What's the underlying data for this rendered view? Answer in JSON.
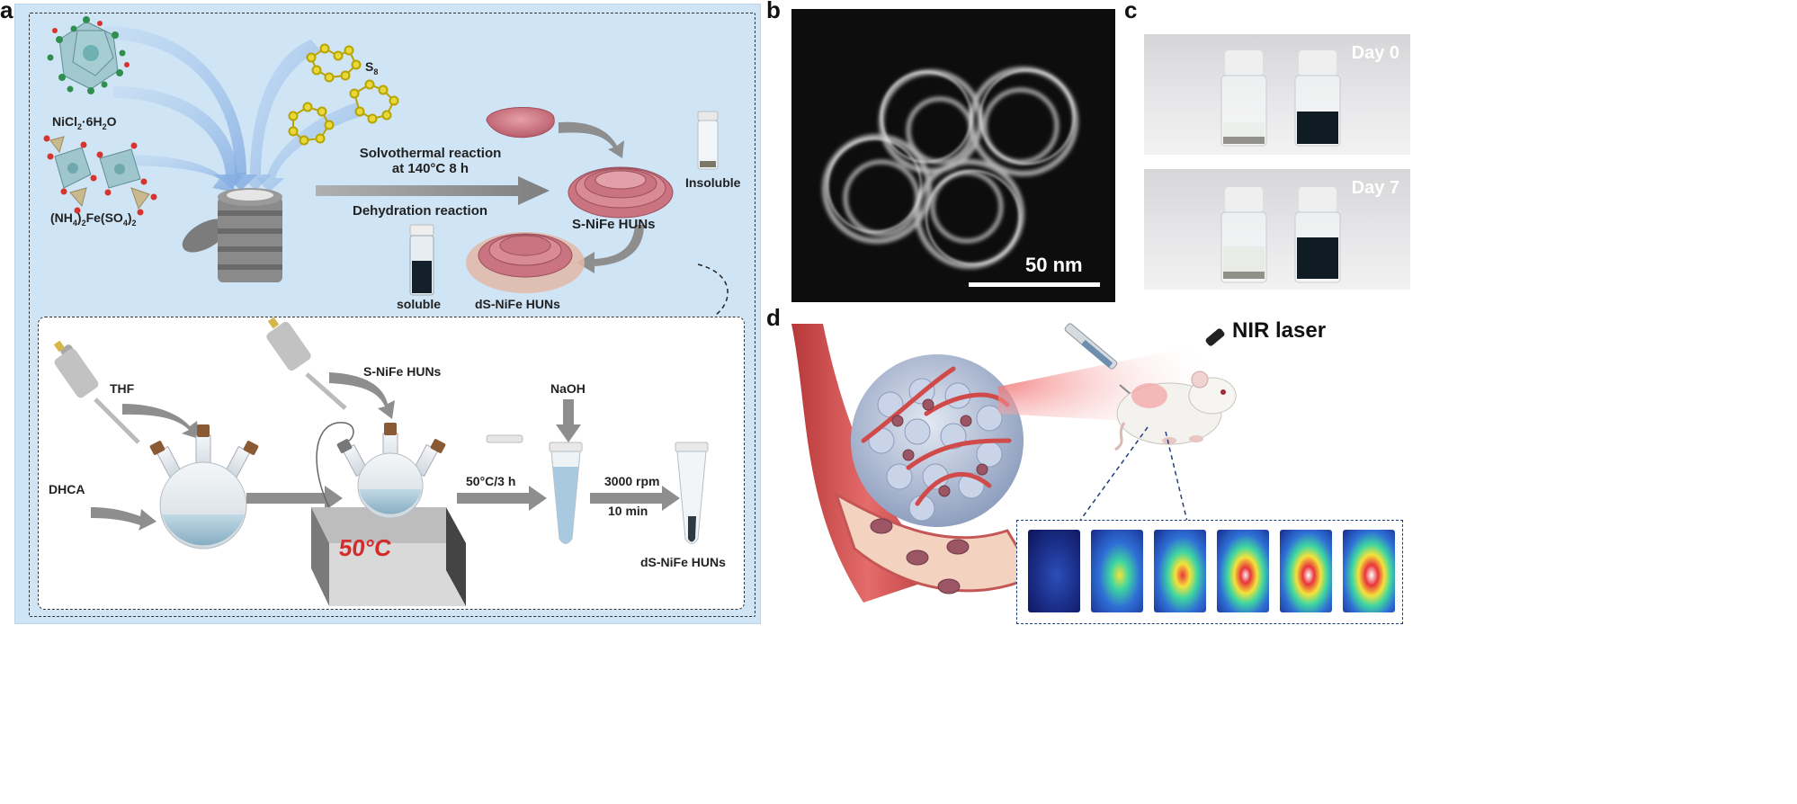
{
  "panels": {
    "a": "a",
    "b": "b",
    "c": "c",
    "d": "d"
  },
  "panel_a": {
    "precursor_ni": "NiCl",
    "precursor_ni_sub": "2",
    "precursor_ni_tail": "·6H",
    "precursor_ni_sub2": "2",
    "precursor_ni_end": "O",
    "precursor_fe_open": "(NH",
    "precursor_fe_sub1": "4",
    "precursor_fe_mid": ")",
    "precursor_fe_sub2": "2",
    "precursor_fe_body": "Fe(SO",
    "precursor_fe_sub3": "4",
    "precursor_fe_close": ")",
    "precursor_fe_sub4": "2",
    "sulfur": "S",
    "sulfur_sub": "8",
    "solvothermal_line1": "Solvothermal reaction",
    "solvothermal_line2": "at 140°C 8 h",
    "dehydration": "Dehydration reaction",
    "s_nife": "S-NiFe HUNs",
    "insoluble": "Insoluble",
    "soluble": "soluble",
    "ds_nife": "dS-NiFe HUNs",
    "thf": "THF",
    "dhca": "DHCA",
    "s_nife_bottom": "S-NiFe HUNs",
    "heater_temp": "50°C",
    "naoh": "NaOH",
    "condition_temp": "50°C/3 h",
    "centrifuge_speed": "3000 rpm",
    "centrifuge_time": "10 min",
    "ds_nife_bottom": "dS-NiFe HUNs"
  },
  "panel_b": {
    "scale_bar": "50 nm"
  },
  "panel_c": {
    "day0": "Day 0",
    "day7": "Day 7"
  },
  "panel_d": {
    "laser": "NIR laser"
  },
  "colors": {
    "panel_a_bg": "#cfe4f5",
    "arrow": "#8e8e8e",
    "nanoparticle": "#c9737f",
    "heater_text": "#d42a2a",
    "dashed_frame": "#1f3f7a"
  }
}
